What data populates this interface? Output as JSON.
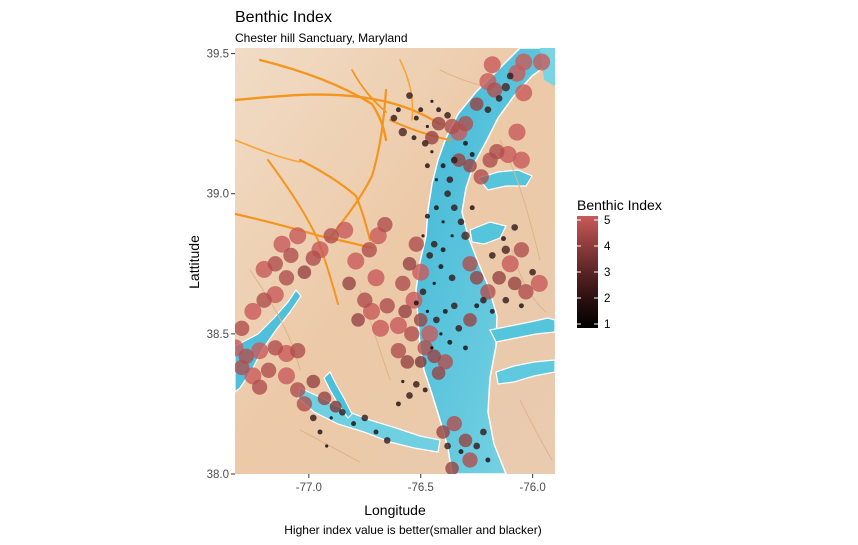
{
  "chart_data": {
    "type": "scatter",
    "title": "Benthic Index",
    "subtitle": "Chester hill Sanctuary, Maryland",
    "xlabel": "Longitude",
    "ylabel": "Lattitude",
    "caption": "Higher index value  is better(smaller and blacker)",
    "xlim": [
      -77.33,
      -75.9
    ],
    "ylim": [
      38.0,
      39.52
    ],
    "x_ticks": [
      {
        "value": -77.0,
        "label": "-77.0"
      },
      {
        "value": -76.5,
        "label": "-76.5"
      },
      {
        "value": -76.0,
        "label": "-76.0"
      }
    ],
    "y_ticks": [
      {
        "value": 38.0,
        "label": "38.0"
      },
      {
        "value": 38.5,
        "label": "38.5"
      },
      {
        "value": 39.0,
        "label": "39.0"
      },
      {
        "value": 39.5,
        "label": "39.5"
      }
    ],
    "grid": false,
    "legend": {
      "title": "Benthic Index",
      "position": "right",
      "min": 1,
      "max": 5,
      "ticks": [
        {
          "value": 5,
          "label": "5"
        },
        {
          "value": 4,
          "label": "4"
        },
        {
          "value": 3,
          "label": "3"
        },
        {
          "value": 2,
          "label": "2"
        },
        {
          "value": 1,
          "label": "1"
        }
      ],
      "colors": {
        "low": "#000000",
        "high": "#c85a5a"
      }
    },
    "size_range_px": [
      1.6,
      8.5
    ],
    "point_opacity": 0.8,
    "points": [
      [
        -75.96,
        39.47,
        5
      ],
      [
        -76.04,
        39.47,
        5
      ],
      [
        -76.07,
        39.43,
        5
      ],
      [
        -76.04,
        39.36,
        5
      ],
      [
        -76.18,
        39.46,
        5
      ],
      [
        -76.17,
        39.37,
        4.5
      ],
      [
        -76.2,
        39.4,
        5
      ],
      [
        -76.25,
        39.32,
        4
      ],
      [
        -76.3,
        39.25,
        4.5
      ],
      [
        -76.33,
        39.22,
        5
      ],
      [
        -76.36,
        39.24,
        4.5
      ],
      [
        -76.42,
        39.25,
        4
      ],
      [
        -76.45,
        39.2,
        4
      ],
      [
        -76.07,
        39.22,
        5
      ],
      [
        -76.11,
        39.14,
        5
      ],
      [
        -76.16,
        39.15,
        4.5
      ],
      [
        -76.05,
        39.12,
        5
      ],
      [
        -76.19,
        39.12,
        4.5
      ],
      [
        -76.28,
        39.1,
        4
      ],
      [
        -76.23,
        39.06,
        4.5
      ],
      [
        -76.33,
        39.12,
        4
      ],
      [
        -76.1,
        39.42,
        2
      ],
      [
        -76.12,
        39.38,
        2.5
      ],
      [
        -76.15,
        39.34,
        2
      ],
      [
        -76.2,
        39.3,
        2
      ],
      [
        -76.3,
        39.18,
        1.5
      ],
      [
        -76.35,
        39.12,
        2
      ],
      [
        -76.27,
        39.14,
        1.5
      ],
      [
        -76.37,
        39.05,
        2
      ],
      [
        -76.4,
        39.1,
        1.5
      ],
      [
        -76.42,
        39.3,
        1.5
      ],
      [
        -76.38,
        39.28,
        2
      ],
      [
        -76.45,
        39.33,
        1
      ],
      [
        -76.5,
        39.3,
        1.5
      ],
      [
        -76.55,
        39.35,
        2
      ],
      [
        -76.6,
        39.3,
        1.5
      ],
      [
        -76.62,
        39.27,
        2
      ],
      [
        -76.58,
        39.22,
        2.5
      ],
      [
        -76.52,
        39.27,
        1.5
      ],
      [
        -76.47,
        39.24,
        1
      ],
      [
        -76.53,
        39.2,
        1.5
      ],
      [
        -76.48,
        39.18,
        2
      ],
      [
        -76.45,
        39.15,
        1
      ],
      [
        -76.47,
        39.1,
        1.5
      ],
      [
        -76.43,
        39.05,
        1
      ],
      [
        -76.38,
        39.0,
        2
      ],
      [
        -76.43,
        38.95,
        1.5
      ],
      [
        -76.4,
        38.9,
        1
      ],
      [
        -76.35,
        38.95,
        2
      ],
      [
        -76.47,
        38.92,
        1.5
      ],
      [
        -76.49,
        38.85,
        1
      ],
      [
        -76.44,
        38.82,
        2
      ],
      [
        -76.4,
        38.8,
        1.5
      ],
      [
        -76.36,
        38.85,
        1
      ],
      [
        -76.32,
        38.9,
        2
      ],
      [
        -76.27,
        38.95,
        1.5
      ],
      [
        -76.3,
        38.85,
        2.5
      ],
      [
        -76.46,
        38.78,
        2
      ],
      [
        -76.41,
        38.74,
        1.5
      ],
      [
        -76.36,
        38.7,
        2
      ],
      [
        -76.44,
        38.68,
        1
      ],
      [
        -76.49,
        38.65,
        2
      ],
      [
        -76.52,
        38.61,
        1.5
      ],
      [
        -76.47,
        38.58,
        1
      ],
      [
        -76.43,
        38.55,
        2
      ],
      [
        -76.39,
        38.58,
        1.5
      ],
      [
        -76.35,
        38.6,
        2
      ],
      [
        -76.41,
        38.5,
        1
      ],
      [
        -76.37,
        38.47,
        1.5
      ],
      [
        -76.33,
        38.52,
        2
      ],
      [
        -76.3,
        38.45,
        1.5
      ],
      [
        -76.45,
        38.45,
        1
      ],
      [
        -76.52,
        38.82,
        4.5
      ],
      [
        -76.55,
        38.75,
        4
      ],
      [
        -76.5,
        38.72,
        5
      ],
      [
        -76.58,
        38.68,
        4.5
      ],
      [
        -76.53,
        38.62,
        5
      ],
      [
        -76.57,
        38.58,
        4
      ],
      [
        -76.6,
        38.53,
        5
      ],
      [
        -76.54,
        38.5,
        4.5
      ],
      [
        -76.5,
        38.55,
        4
      ],
      [
        -76.46,
        38.5,
        5
      ],
      [
        -76.48,
        38.45,
        4.5
      ],
      [
        -76.44,
        38.42,
        4
      ],
      [
        -76.39,
        38.4,
        4.5
      ],
      [
        -76.42,
        38.36,
        4
      ],
      [
        -76.6,
        38.44,
        4.5
      ],
      [
        -76.56,
        38.4,
        4
      ],
      [
        -76.5,
        38.4,
        3.5
      ],
      [
        -76.7,
        38.7,
        5
      ],
      [
        -76.75,
        38.62,
        4.5
      ],
      [
        -76.72,
        38.58,
        5
      ],
      [
        -76.78,
        38.55,
        4
      ],
      [
        -76.68,
        38.52,
        5
      ],
      [
        -76.65,
        38.6,
        4.5
      ],
      [
        -76.82,
        38.68,
        4
      ],
      [
        -76.79,
        38.76,
        5
      ],
      [
        -76.73,
        38.8,
        4.5
      ],
      [
        -76.69,
        38.85,
        5
      ],
      [
        -76.66,
        38.89,
        4.5
      ],
      [
        -76.84,
        38.87,
        5
      ],
      [
        -76.9,
        38.85,
        4.5
      ],
      [
        -76.95,
        38.8,
        5
      ],
      [
        -76.98,
        38.77,
        4.5
      ],
      [
        -77.05,
        38.85,
        5
      ],
      [
        -77.08,
        38.78,
        4.5
      ],
      [
        -77.02,
        38.72,
        4
      ],
      [
        -77.12,
        38.82,
        5
      ],
      [
        -77.15,
        38.75,
        4.5
      ],
      [
        -77.2,
        38.73,
        5
      ],
      [
        -77.1,
        38.7,
        4.5
      ],
      [
        -77.15,
        38.64,
        5
      ],
      [
        -77.2,
        38.62,
        4.5
      ],
      [
        -77.25,
        38.58,
        5
      ],
      [
        -77.3,
        38.52,
        4.5
      ],
      [
        -77.33,
        38.45,
        5
      ],
      [
        -77.28,
        38.42,
        4.5
      ],
      [
        -77.22,
        38.44,
        5
      ],
      [
        -77.15,
        38.45,
        4.5
      ],
      [
        -77.1,
        38.43,
        5
      ],
      [
        -77.05,
        38.44,
        4.5
      ],
      [
        -77.18,
        38.37,
        4.5
      ],
      [
        -77.25,
        38.35,
        5
      ],
      [
        -77.3,
        38.38,
        4.5
      ],
      [
        -77.22,
        38.31,
        4.5
      ],
      [
        -77.1,
        38.35,
        5
      ],
      [
        -77.05,
        38.3,
        4.5
      ],
      [
        -76.98,
        38.33,
        4
      ],
      [
        -77.02,
        38.25,
        4.5
      ],
      [
        -76.93,
        38.27,
        4
      ],
      [
        -76.88,
        38.24,
        3.5
      ],
      [
        -76.98,
        38.2,
        2
      ],
      [
        -76.95,
        38.15,
        1.5
      ],
      [
        -76.9,
        38.2,
        1
      ],
      [
        -76.85,
        38.22,
        2
      ],
      [
        -76.8,
        38.18,
        1.5
      ],
      [
        -76.75,
        38.2,
        2
      ],
      [
        -76.7,
        38.15,
        1.5
      ],
      [
        -76.65,
        38.12,
        2
      ],
      [
        -76.6,
        38.25,
        1.5
      ],
      [
        -76.55,
        38.28,
        2
      ],
      [
        -76.58,
        38.33,
        1
      ],
      [
        -76.52,
        38.32,
        2
      ],
      [
        -76.48,
        38.3,
        1.5
      ],
      [
        -76.92,
        38.1,
        1
      ],
      [
        -76.4,
        38.15,
        4
      ],
      [
        -76.35,
        38.18,
        4.5
      ],
      [
        -76.3,
        38.12,
        4
      ],
      [
        -76.28,
        38.05,
        4.5
      ],
      [
        -76.36,
        38.02,
        4
      ],
      [
        -76.25,
        38.1,
        2
      ],
      [
        -76.2,
        38.05,
        1.5
      ],
      [
        -76.22,
        38.15,
        2
      ],
      [
        -76.32,
        38.08,
        1.5
      ],
      [
        -76.38,
        38.1,
        2
      ],
      [
        -76.28,
        38.75,
        4.5
      ],
      [
        -76.25,
        38.7,
        4
      ],
      [
        -76.2,
        38.65,
        4.5
      ],
      [
        -76.15,
        38.7,
        4
      ],
      [
        -76.1,
        38.75,
        5
      ],
      [
        -76.05,
        38.8,
        4.5
      ],
      [
        -76.08,
        38.68,
        4
      ],
      [
        -76.03,
        38.65,
        4.5
      ],
      [
        -75.97,
        38.68,
        5
      ],
      [
        -76.0,
        38.72,
        2
      ],
      [
        -76.05,
        38.6,
        1.5
      ],
      [
        -76.12,
        38.62,
        2
      ],
      [
        -76.18,
        38.58,
        1.5
      ],
      [
        -76.22,
        38.62,
        2
      ],
      [
        -76.28,
        38.55,
        4
      ],
      [
        -76.25,
        38.6,
        1.5
      ],
      [
        -76.18,
        38.78,
        2
      ],
      [
        -76.13,
        38.84,
        1.5
      ],
      [
        -76.08,
        38.88,
        2
      ],
      [
        -76.12,
        38.8,
        2.5
      ]
    ]
  }
}
